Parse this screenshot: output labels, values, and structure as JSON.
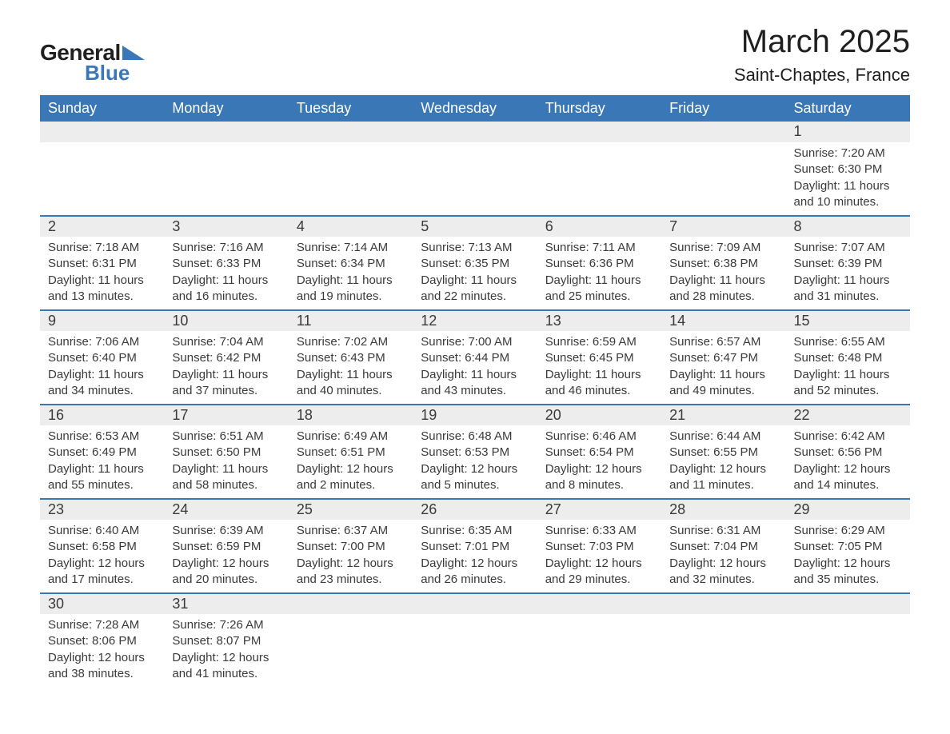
{
  "brand": {
    "word1": "General",
    "word2": "Blue"
  },
  "title": "March 2025",
  "location": "Saint-Chaptes, France",
  "colors": {
    "header_bg": "#3a77b6",
    "header_text": "#ffffff",
    "daynum_bg": "#ededed",
    "row_divider": "#3a77b6",
    "body_text": "#3a3a3a",
    "page_bg": "#ffffff"
  },
  "day_headers": [
    "Sunday",
    "Monday",
    "Tuesday",
    "Wednesday",
    "Thursday",
    "Friday",
    "Saturday"
  ],
  "weeks": [
    [
      null,
      null,
      null,
      null,
      null,
      null,
      {
        "n": "1",
        "sr": "Sunrise: 7:20 AM",
        "ss": "Sunset: 6:30 PM",
        "d1": "Daylight: 11 hours",
        "d2": "and 10 minutes."
      }
    ],
    [
      {
        "n": "2",
        "sr": "Sunrise: 7:18 AM",
        "ss": "Sunset: 6:31 PM",
        "d1": "Daylight: 11 hours",
        "d2": "and 13 minutes."
      },
      {
        "n": "3",
        "sr": "Sunrise: 7:16 AM",
        "ss": "Sunset: 6:33 PM",
        "d1": "Daylight: 11 hours",
        "d2": "and 16 minutes."
      },
      {
        "n": "4",
        "sr": "Sunrise: 7:14 AM",
        "ss": "Sunset: 6:34 PM",
        "d1": "Daylight: 11 hours",
        "d2": "and 19 minutes."
      },
      {
        "n": "5",
        "sr": "Sunrise: 7:13 AM",
        "ss": "Sunset: 6:35 PM",
        "d1": "Daylight: 11 hours",
        "d2": "and 22 minutes."
      },
      {
        "n": "6",
        "sr": "Sunrise: 7:11 AM",
        "ss": "Sunset: 6:36 PM",
        "d1": "Daylight: 11 hours",
        "d2": "and 25 minutes."
      },
      {
        "n": "7",
        "sr": "Sunrise: 7:09 AM",
        "ss": "Sunset: 6:38 PM",
        "d1": "Daylight: 11 hours",
        "d2": "and 28 minutes."
      },
      {
        "n": "8",
        "sr": "Sunrise: 7:07 AM",
        "ss": "Sunset: 6:39 PM",
        "d1": "Daylight: 11 hours",
        "d2": "and 31 minutes."
      }
    ],
    [
      {
        "n": "9",
        "sr": "Sunrise: 7:06 AM",
        "ss": "Sunset: 6:40 PM",
        "d1": "Daylight: 11 hours",
        "d2": "and 34 minutes."
      },
      {
        "n": "10",
        "sr": "Sunrise: 7:04 AM",
        "ss": "Sunset: 6:42 PM",
        "d1": "Daylight: 11 hours",
        "d2": "and 37 minutes."
      },
      {
        "n": "11",
        "sr": "Sunrise: 7:02 AM",
        "ss": "Sunset: 6:43 PM",
        "d1": "Daylight: 11 hours",
        "d2": "and 40 minutes."
      },
      {
        "n": "12",
        "sr": "Sunrise: 7:00 AM",
        "ss": "Sunset: 6:44 PM",
        "d1": "Daylight: 11 hours",
        "d2": "and 43 minutes."
      },
      {
        "n": "13",
        "sr": "Sunrise: 6:59 AM",
        "ss": "Sunset: 6:45 PM",
        "d1": "Daylight: 11 hours",
        "d2": "and 46 minutes."
      },
      {
        "n": "14",
        "sr": "Sunrise: 6:57 AM",
        "ss": "Sunset: 6:47 PM",
        "d1": "Daylight: 11 hours",
        "d2": "and 49 minutes."
      },
      {
        "n": "15",
        "sr": "Sunrise: 6:55 AM",
        "ss": "Sunset: 6:48 PM",
        "d1": "Daylight: 11 hours",
        "d2": "and 52 minutes."
      }
    ],
    [
      {
        "n": "16",
        "sr": "Sunrise: 6:53 AM",
        "ss": "Sunset: 6:49 PM",
        "d1": "Daylight: 11 hours",
        "d2": "and 55 minutes."
      },
      {
        "n": "17",
        "sr": "Sunrise: 6:51 AM",
        "ss": "Sunset: 6:50 PM",
        "d1": "Daylight: 11 hours",
        "d2": "and 58 minutes."
      },
      {
        "n": "18",
        "sr": "Sunrise: 6:49 AM",
        "ss": "Sunset: 6:51 PM",
        "d1": "Daylight: 12 hours",
        "d2": "and 2 minutes."
      },
      {
        "n": "19",
        "sr": "Sunrise: 6:48 AM",
        "ss": "Sunset: 6:53 PM",
        "d1": "Daylight: 12 hours",
        "d2": "and 5 minutes."
      },
      {
        "n": "20",
        "sr": "Sunrise: 6:46 AM",
        "ss": "Sunset: 6:54 PM",
        "d1": "Daylight: 12 hours",
        "d2": "and 8 minutes."
      },
      {
        "n": "21",
        "sr": "Sunrise: 6:44 AM",
        "ss": "Sunset: 6:55 PM",
        "d1": "Daylight: 12 hours",
        "d2": "and 11 minutes."
      },
      {
        "n": "22",
        "sr": "Sunrise: 6:42 AM",
        "ss": "Sunset: 6:56 PM",
        "d1": "Daylight: 12 hours",
        "d2": "and 14 minutes."
      }
    ],
    [
      {
        "n": "23",
        "sr": "Sunrise: 6:40 AM",
        "ss": "Sunset: 6:58 PM",
        "d1": "Daylight: 12 hours",
        "d2": "and 17 minutes."
      },
      {
        "n": "24",
        "sr": "Sunrise: 6:39 AM",
        "ss": "Sunset: 6:59 PM",
        "d1": "Daylight: 12 hours",
        "d2": "and 20 minutes."
      },
      {
        "n": "25",
        "sr": "Sunrise: 6:37 AM",
        "ss": "Sunset: 7:00 PM",
        "d1": "Daylight: 12 hours",
        "d2": "and 23 minutes."
      },
      {
        "n": "26",
        "sr": "Sunrise: 6:35 AM",
        "ss": "Sunset: 7:01 PM",
        "d1": "Daylight: 12 hours",
        "d2": "and 26 minutes."
      },
      {
        "n": "27",
        "sr": "Sunrise: 6:33 AM",
        "ss": "Sunset: 7:03 PM",
        "d1": "Daylight: 12 hours",
        "d2": "and 29 minutes."
      },
      {
        "n": "28",
        "sr": "Sunrise: 6:31 AM",
        "ss": "Sunset: 7:04 PM",
        "d1": "Daylight: 12 hours",
        "d2": "and 32 minutes."
      },
      {
        "n": "29",
        "sr": "Sunrise: 6:29 AM",
        "ss": "Sunset: 7:05 PM",
        "d1": "Daylight: 12 hours",
        "d2": "and 35 minutes."
      }
    ],
    [
      {
        "n": "30",
        "sr": "Sunrise: 7:28 AM",
        "ss": "Sunset: 8:06 PM",
        "d1": "Daylight: 12 hours",
        "d2": "and 38 minutes."
      },
      {
        "n": "31",
        "sr": "Sunrise: 7:26 AM",
        "ss": "Sunset: 8:07 PM",
        "d1": "Daylight: 12 hours",
        "d2": "and 41 minutes."
      },
      null,
      null,
      null,
      null,
      null
    ]
  ]
}
